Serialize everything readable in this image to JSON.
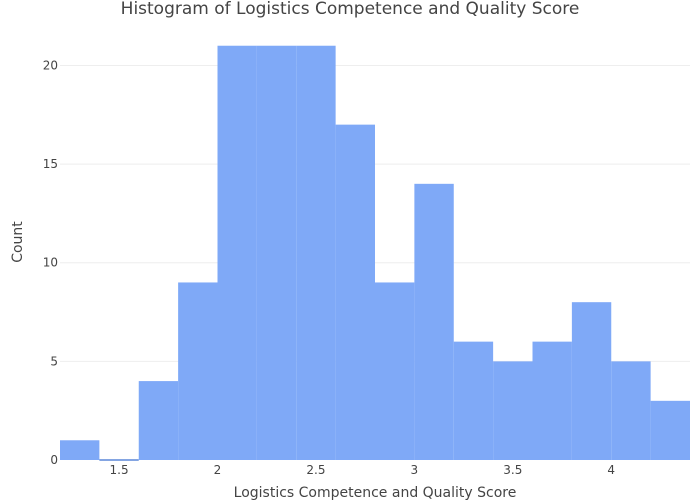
{
  "chart_data": {
    "type": "bar",
    "title": "Histogram of Logistics Competence and Quality Score",
    "xlabel": "Logistics Competence and Quality Score",
    "ylabel": "Count",
    "xlim": [
      1.2,
      4.4
    ],
    "ylim": [
      0,
      22
    ],
    "x_ticks": [
      1.5,
      2,
      2.5,
      3,
      3.5,
      4
    ],
    "x_tick_labels": [
      "1.5",
      "2",
      "2.5",
      "3",
      "3.5",
      "4"
    ],
    "y_ticks": [
      0,
      5,
      10,
      15,
      20
    ],
    "y_tick_labels": [
      "0",
      "5",
      "10",
      "15",
      "20"
    ],
    "bins": [
      {
        "start": 1.2,
        "end": 1.4,
        "count": 1
      },
      {
        "start": 1.4,
        "end": 1.6,
        "count": 0
      },
      {
        "start": 1.6,
        "end": 1.8,
        "count": 4
      },
      {
        "start": 1.8,
        "end": 2.0,
        "count": 9
      },
      {
        "start": 2.0,
        "end": 2.2,
        "count": 21
      },
      {
        "start": 2.2,
        "end": 2.4,
        "count": 21
      },
      {
        "start": 2.4,
        "end": 2.6,
        "count": 21
      },
      {
        "start": 2.6,
        "end": 2.8,
        "count": 17
      },
      {
        "start": 2.8,
        "end": 3.0,
        "count": 9
      },
      {
        "start": 3.0,
        "end": 3.2,
        "count": 14
      },
      {
        "start": 3.2,
        "end": 3.4,
        "count": 6
      },
      {
        "start": 3.4,
        "end": 3.6,
        "count": 5
      },
      {
        "start": 3.6,
        "end": 3.8,
        "count": 6
      },
      {
        "start": 3.8,
        "end": 4.0,
        "count": 8
      },
      {
        "start": 4.0,
        "end": 4.2,
        "count": 5
      },
      {
        "start": 4.2,
        "end": 4.4,
        "count": 3
      }
    ],
    "grid": true,
    "legend": "none",
    "colors": {
      "bar": "#7fa9f7",
      "grid": "#eeeeee",
      "text": "#444444"
    }
  }
}
